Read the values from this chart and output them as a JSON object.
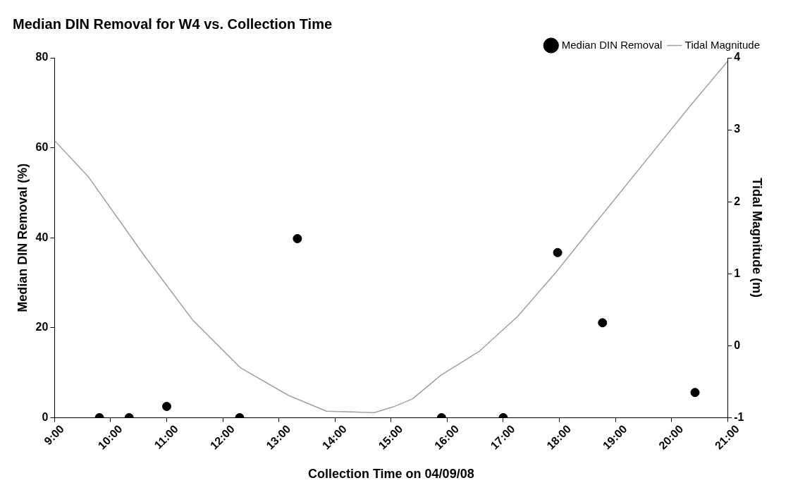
{
  "chart_data": {
    "type": "scatter",
    "title": "Median DIN Removal for W4 vs. Collection Time",
    "xlabel": "Collection Time on 04/09/08",
    "ylabel": "Median DIN Removal (%)",
    "y2label": "Tidal Magnitude (m)",
    "xlim": [
      9,
      21
    ],
    "xticks": [
      {
        "value": 9,
        "label": "9:00"
      },
      {
        "value": 10,
        "label": "10:00"
      },
      {
        "value": 11,
        "label": "11:00"
      },
      {
        "value": 12,
        "label": "12:00"
      },
      {
        "value": 13,
        "label": "13:00"
      },
      {
        "value": 14,
        "label": "14:00"
      },
      {
        "value": 15,
        "label": "15:00"
      },
      {
        "value": 16,
        "label": "16:00"
      },
      {
        "value": 17,
        "label": "17:00"
      },
      {
        "value": 18,
        "label": "18:00"
      },
      {
        "value": 19,
        "label": "19:00"
      },
      {
        "value": 20,
        "label": "20:00"
      },
      {
        "value": 21,
        "label": "21:00"
      }
    ],
    "ylim": [
      0,
      80
    ],
    "yticks": [
      0,
      20,
      40,
      60,
      80
    ],
    "y2lim": [
      -1,
      4
    ],
    "y2ticks": [
      -1,
      0,
      1,
      2,
      3,
      4
    ],
    "grid": false,
    "legend": "top right",
    "marker": "circle",
    "series": [
      {
        "name": "Median DIN Removal",
        "color": "#000000",
        "x": [
          9.8,
          10.33,
          11.0,
          12.3,
          13.33,
          15.9,
          17.0,
          17.97,
          18.77,
          20.42
        ],
        "values": [
          0,
          0,
          2.5,
          0,
          39.8,
          0,
          0,
          36.7,
          21.1,
          5.6
        ]
      },
      {
        "name": "Tidal Magnitude",
        "type": "line",
        "axis": "y2",
        "color": "#a0a0a0",
        "marker": "none",
        "x": [
          9.0,
          9.6,
          10.62,
          11.47,
          12.32,
          13.17,
          13.85,
          14.7,
          15.04,
          15.38,
          15.89,
          16.57,
          17.26,
          17.94,
          18.62,
          19.47,
          20.32,
          21.0
        ],
        "values": [
          2.85,
          2.35,
          1.23,
          0.35,
          -0.31,
          -0.69,
          -0.91,
          -0.93,
          -0.85,
          -0.74,
          -0.41,
          -0.08,
          0.41,
          1.02,
          1.68,
          2.5,
          3.32,
          3.95
        ]
      }
    ]
  }
}
